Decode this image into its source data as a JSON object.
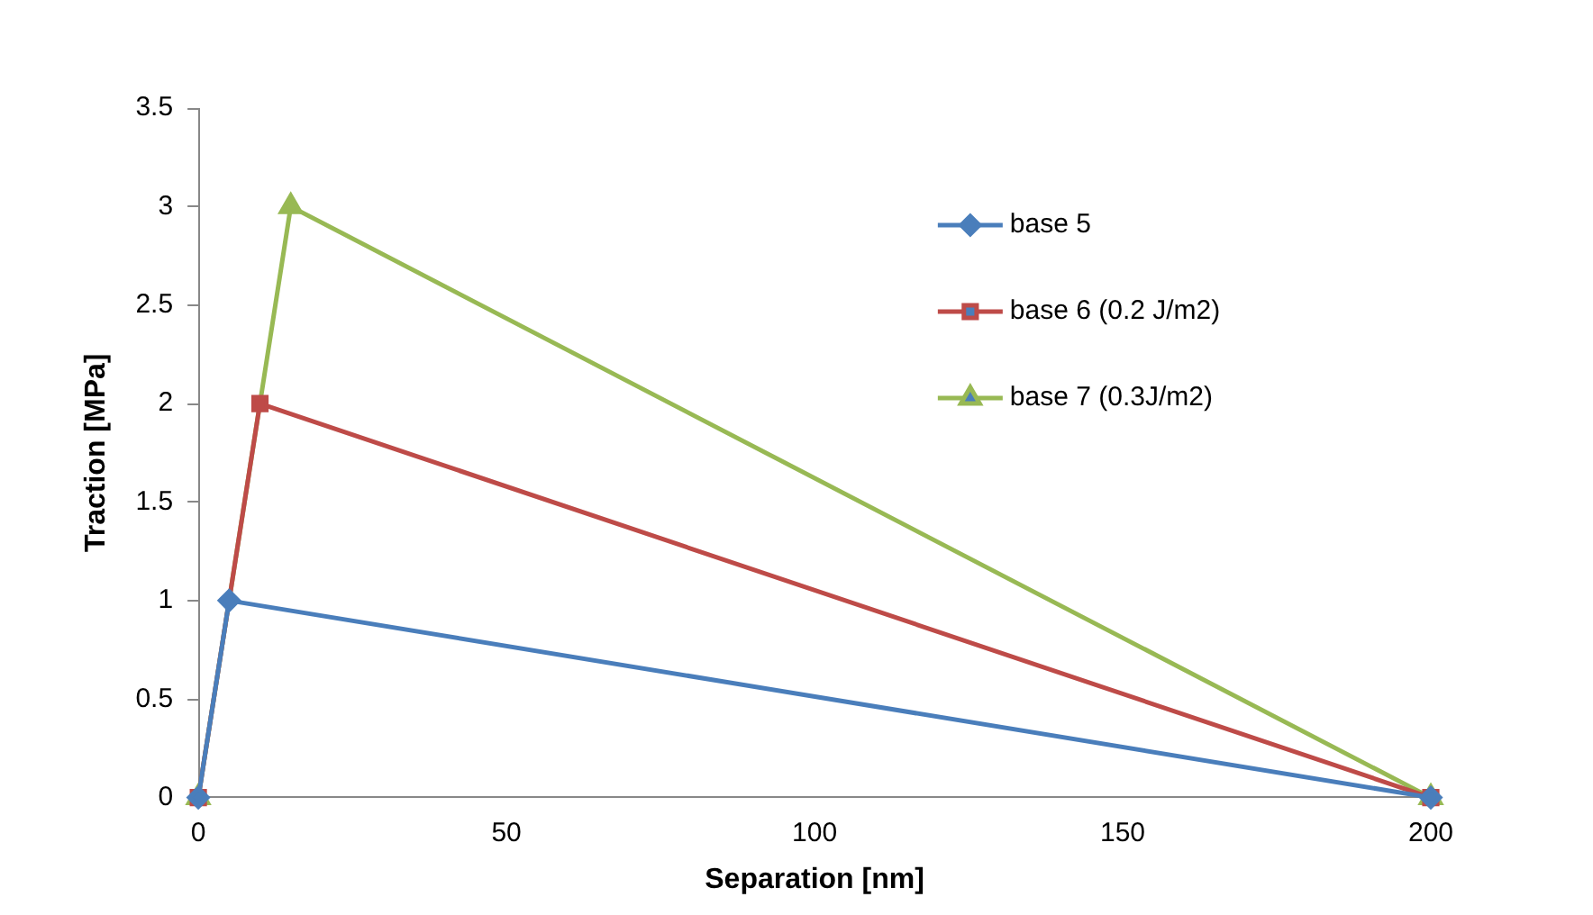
{
  "chart_data": {
    "type": "line",
    "xlabel": "Separation [nm]",
    "ylabel": "Traction [MPa]",
    "xlim": [
      0,
      200
    ],
    "xticks": [
      0,
      50,
      100,
      150,
      200
    ],
    "ylim": [
      0,
      3.5
    ],
    "yticks": [
      0,
      0.5,
      1,
      1.5,
      2,
      2.5,
      3,
      3.5
    ],
    "grid": false,
    "legend": "top right",
    "line_style": "solid",
    "series": [
      {
        "name": "base 5",
        "color": "#4a7ebb",
        "marker": "diamond",
        "x": [
          0,
          5,
          200
        ],
        "values": [
          0,
          1,
          0
        ]
      },
      {
        "name": "base 6 (0.2 J/m2)",
        "color": "#be4b48",
        "marker": "square",
        "x": [
          0,
          10,
          200
        ],
        "values": [
          0,
          2,
          0
        ]
      },
      {
        "name": "base 7 (0.3J/m2)",
        "color": "#98b954",
        "marker": "triangle",
        "x": [
          0,
          15,
          200
        ],
        "values": [
          0,
          3,
          0
        ]
      }
    ]
  }
}
